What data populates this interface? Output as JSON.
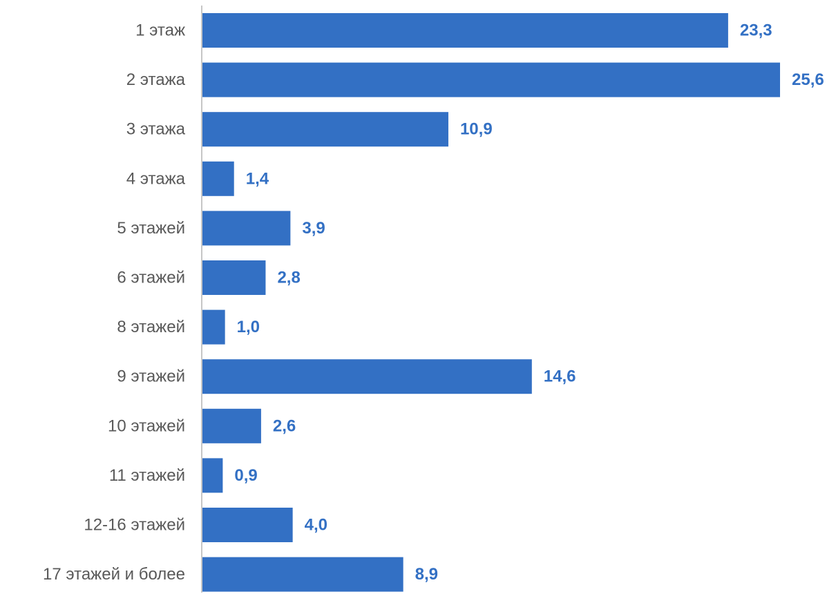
{
  "chart_data": {
    "type": "bar",
    "orientation": "horizontal",
    "categories": [
      "1 этаж",
      "2 этажа",
      "3 этажа",
      "4 этажа",
      "5 этажей",
      "6 этажей",
      "8 этажей",
      "9 этажей",
      "10 этажей",
      "11 этажей",
      "12-16 этажей",
      "17 этажей и более"
    ],
    "values": [
      23.3,
      25.6,
      10.9,
      1.4,
      3.9,
      2.8,
      1.0,
      14.6,
      2.6,
      0.9,
      4.0,
      8.9
    ],
    "value_labels": [
      "23,3",
      "25,6",
      "10,9",
      "1,4",
      "3,9",
      "2,8",
      "1,0",
      "14,6",
      "2,6",
      "0,9",
      "4,0",
      "8,9"
    ],
    "xlim": [
      0,
      25.6
    ],
    "grid": false,
    "legend": "none",
    "colors": {
      "bar": "#3370C4",
      "value_label": "#3370C4",
      "category_label": "#595959",
      "axis": "#8C8C8C"
    }
  }
}
